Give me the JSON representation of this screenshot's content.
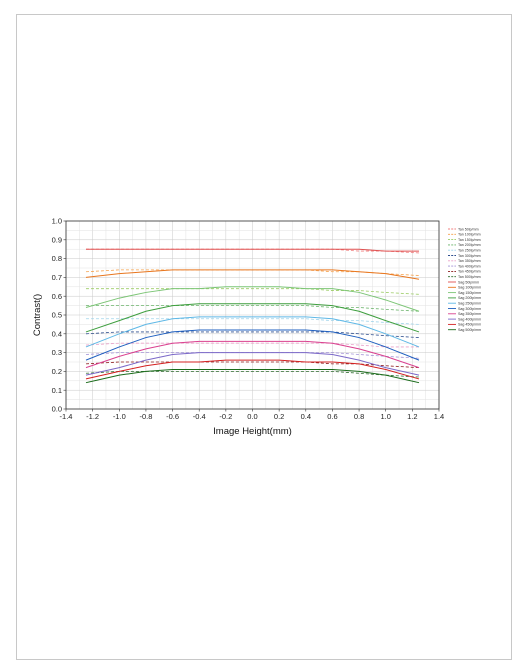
{
  "chart_data": {
    "type": "line",
    "title": "",
    "xlabel": "Image Height(mm)",
    "ylabel": "Contrast()",
    "xlim": [
      -1.4,
      1.4
    ],
    "ylim": [
      0.0,
      1.0
    ],
    "xticks": [
      "-1.4",
      "-1.2",
      "-1.0",
      "-0.8",
      "-0.6",
      "-0.4",
      "-0.2",
      "0.0",
      "0.2",
      "0.4",
      "0.6",
      "0.8",
      "1.0",
      "1.2",
      "1.4"
    ],
    "yticks": [
      "0.0",
      "0.1",
      "0.2",
      "0.3",
      "0.4",
      "0.5",
      "0.6",
      "0.7",
      "0.8",
      "0.9",
      "1.0"
    ],
    "grid": true,
    "legend_position": "right",
    "x": [
      -1.25,
      -1.0,
      -0.8,
      -0.6,
      -0.4,
      -0.2,
      0.0,
      0.2,
      0.4,
      0.6,
      0.8,
      1.0,
      1.25
    ],
    "series": [
      {
        "name": "Tan 50lp/mm",
        "style": "dashed",
        "color": "#f08080",
        "values": [
          0.85,
          0.85,
          0.85,
          0.85,
          0.85,
          0.85,
          0.85,
          0.85,
          0.85,
          0.85,
          0.84,
          0.84,
          0.83
        ]
      },
      {
        "name": "Tan 100lp/mm",
        "style": "dashed",
        "color": "#f5a04a",
        "values": [
          0.73,
          0.74,
          0.74,
          0.74,
          0.74,
          0.74,
          0.74,
          0.74,
          0.74,
          0.73,
          0.73,
          0.72,
          0.71
        ]
      },
      {
        "name": "Tan 150lp/mm",
        "style": "dashed",
        "color": "#9ccc65",
        "values": [
          0.64,
          0.64,
          0.64,
          0.64,
          0.64,
          0.64,
          0.64,
          0.64,
          0.64,
          0.63,
          0.63,
          0.62,
          0.61
        ]
      },
      {
        "name": "Tan 200lp/mm",
        "style": "dashed",
        "color": "#6ab36a",
        "values": [
          0.55,
          0.55,
          0.55,
          0.55,
          0.55,
          0.55,
          0.55,
          0.55,
          0.55,
          0.54,
          0.54,
          0.53,
          0.52
        ]
      },
      {
        "name": "Tan 250lp/mm",
        "style": "dashed",
        "color": "#9fd3ea",
        "values": [
          0.48,
          0.48,
          0.48,
          0.48,
          0.48,
          0.48,
          0.48,
          0.48,
          0.48,
          0.47,
          0.47,
          0.46,
          0.45
        ]
      },
      {
        "name": "Tan 300lp/mm",
        "style": "dashed",
        "color": "#2f4f8f",
        "values": [
          0.4,
          0.41,
          0.41,
          0.41,
          0.41,
          0.41,
          0.41,
          0.41,
          0.41,
          0.41,
          0.4,
          0.39,
          0.38
        ]
      },
      {
        "name": "Tan 350lp/mm",
        "style": "dashed",
        "color": "#e9a0c8",
        "values": [
          0.34,
          0.35,
          0.35,
          0.35,
          0.35,
          0.35,
          0.35,
          0.35,
          0.35,
          0.35,
          0.34,
          0.33,
          0.33
        ]
      },
      {
        "name": "Tan 400lp/mm",
        "style": "dashed",
        "color": "#a393d6",
        "values": [
          0.29,
          0.3,
          0.3,
          0.3,
          0.3,
          0.3,
          0.3,
          0.3,
          0.3,
          0.3,
          0.29,
          0.28,
          0.27
        ]
      },
      {
        "name": "Tan 450lp/mm",
        "style": "dashed",
        "color": "#8b1a1a",
        "values": [
          0.24,
          0.25,
          0.25,
          0.25,
          0.25,
          0.25,
          0.25,
          0.25,
          0.25,
          0.24,
          0.24,
          0.23,
          0.22
        ]
      },
      {
        "name": "Tan 500lp/mm",
        "style": "dashed",
        "color": "#2e6b2e",
        "values": [
          0.19,
          0.2,
          0.2,
          0.2,
          0.2,
          0.2,
          0.2,
          0.2,
          0.2,
          0.2,
          0.19,
          0.18,
          0.17
        ]
      },
      {
        "name": "Sag 50lp/mm",
        "style": "solid",
        "color": "#e05050",
        "values": [
          0.85,
          0.85,
          0.85,
          0.85,
          0.85,
          0.85,
          0.85,
          0.85,
          0.85,
          0.85,
          0.85,
          0.84,
          0.84
        ]
      },
      {
        "name": "Sag 100lp/mm",
        "style": "solid",
        "color": "#e8761e",
        "values": [
          0.7,
          0.72,
          0.73,
          0.74,
          0.74,
          0.74,
          0.74,
          0.74,
          0.74,
          0.74,
          0.73,
          0.72,
          0.69
        ]
      },
      {
        "name": "Sag 150lp/mm",
        "style": "solid",
        "color": "#7cc576",
        "values": [
          0.54,
          0.59,
          0.62,
          0.64,
          0.64,
          0.65,
          0.65,
          0.65,
          0.64,
          0.64,
          0.62,
          0.58,
          0.52
        ]
      },
      {
        "name": "Sag 200lp/mm",
        "style": "solid",
        "color": "#3e9e3e",
        "values": [
          0.41,
          0.47,
          0.52,
          0.55,
          0.56,
          0.56,
          0.56,
          0.56,
          0.56,
          0.55,
          0.52,
          0.47,
          0.41
        ]
      },
      {
        "name": "Sag 250lp/mm",
        "style": "solid",
        "color": "#5fb8e6",
        "values": [
          0.33,
          0.4,
          0.45,
          0.48,
          0.49,
          0.49,
          0.49,
          0.49,
          0.49,
          0.48,
          0.45,
          0.4,
          0.33
        ]
      },
      {
        "name": "Sag 300lp/mm",
        "style": "solid",
        "color": "#1f5fbf",
        "values": [
          0.26,
          0.33,
          0.38,
          0.41,
          0.42,
          0.42,
          0.42,
          0.42,
          0.42,
          0.41,
          0.38,
          0.33,
          0.26
        ]
      },
      {
        "name": "Sag 350lp/mm",
        "style": "solid",
        "color": "#d9408f",
        "values": [
          0.22,
          0.28,
          0.32,
          0.35,
          0.36,
          0.36,
          0.36,
          0.36,
          0.36,
          0.35,
          0.32,
          0.28,
          0.22
        ]
      },
      {
        "name": "Sag 400lp/mm",
        "style": "solid",
        "color": "#7b68c8",
        "values": [
          0.18,
          0.22,
          0.26,
          0.29,
          0.3,
          0.3,
          0.3,
          0.3,
          0.3,
          0.29,
          0.26,
          0.22,
          0.18
        ]
      },
      {
        "name": "Sag 450lp/mm",
        "style": "solid",
        "color": "#d42020",
        "values": [
          0.16,
          0.2,
          0.23,
          0.25,
          0.25,
          0.26,
          0.26,
          0.26,
          0.25,
          0.25,
          0.24,
          0.21,
          0.16
        ]
      },
      {
        "name": "Sag 500lp/mm",
        "style": "solid",
        "color": "#1a6b1a",
        "values": [
          0.14,
          0.18,
          0.2,
          0.21,
          0.21,
          0.21,
          0.21,
          0.21,
          0.21,
          0.21,
          0.2,
          0.18,
          0.14
        ]
      }
    ]
  }
}
